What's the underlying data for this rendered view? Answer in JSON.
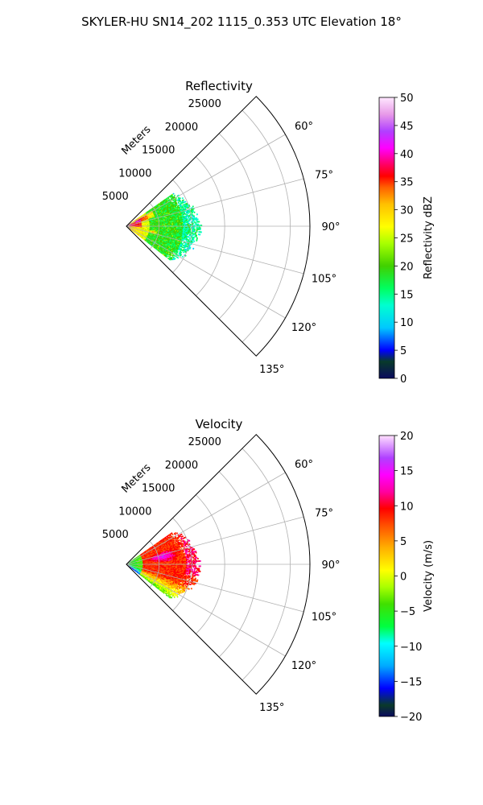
{
  "figure": {
    "title": "SKYLER-HU  SN14_202  1115_0.353 UTC Elevation 18°"
  },
  "chart_data": [
    {
      "type": "heatmap",
      "title": "Reflectivity",
      "projection": "polar-sector",
      "range_label": "Meters",
      "range_ticks": [
        5000,
        10000,
        15000,
        20000,
        25000
      ],
      "range_tick_labels": [
        "5000",
        "10000",
        "15000",
        "20000",
        "25000"
      ],
      "rmax": 28000,
      "azimuth_range_deg": [
        45,
        135
      ],
      "azimuth_ticks": [
        60,
        75,
        90,
        105,
        120,
        135
      ],
      "azimuth_tick_labels": [
        "60°",
        "75°",
        "90°",
        "105°",
        "120°",
        "135°"
      ],
      "grid": true,
      "colorbar": {
        "label": "Reflectivity dBZ",
        "range": [
          0,
          50
        ],
        "ticks": [
          0,
          5,
          10,
          15,
          20,
          25,
          30,
          35,
          40,
          45,
          50
        ],
        "tick_labels": [
          "0",
          "5",
          "10",
          "15",
          "20",
          "25",
          "30",
          "35",
          "40",
          "45",
          "50"
        ]
      },
      "echo_region": {
        "range_extent_m": [
          0,
          11500
        ],
        "azimuth_extent_deg": [
          55,
          128
        ],
        "dominant_value_range": [
          15,
          25
        ],
        "notes": "cores of 30-38 dBZ near origin and at ~100-105 deg, ~4000 m"
      }
    },
    {
      "type": "heatmap",
      "title": "Velocity",
      "projection": "polar-sector",
      "range_label": "Meters",
      "range_ticks": [
        5000,
        10000,
        15000,
        20000,
        25000
      ],
      "range_tick_labels": [
        "5000",
        "10000",
        "15000",
        "20000",
        "25000"
      ],
      "rmax": 28000,
      "azimuth_range_deg": [
        45,
        135
      ],
      "azimuth_ticks": [
        60,
        75,
        90,
        105,
        120,
        135
      ],
      "azimuth_tick_labels": [
        "60°",
        "75°",
        "90°",
        "105°",
        "120°",
        "135°"
      ],
      "grid": true,
      "colorbar": {
        "label": "Velocity (m/s)",
        "range": [
          -20,
          20
        ],
        "ticks": [
          -20,
          -15,
          -10,
          -5,
          0,
          5,
          10,
          15,
          20
        ],
        "tick_labels": [
          "−20",
          "−15",
          "−10",
          "−5",
          "0",
          "5",
          "10",
          "15",
          "20"
        ]
      },
      "echo_region": {
        "range_extent_m": [
          0,
          11500
        ],
        "azimuth_extent_deg": [
          55,
          128
        ],
        "dominant_value_range": [
          5,
          12
        ],
        "notes": "negative (-5 to -8) near origin, +15 to +18 core at ~75-85 deg, 0-5 at southern edge"
      }
    }
  ]
}
